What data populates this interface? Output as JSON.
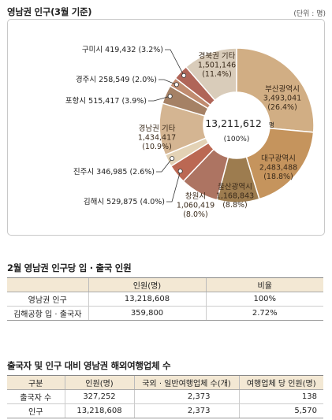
{
  "section1": {
    "title": "영남권 인구(3월 기준)",
    "unit": "(단위 : 명)"
  },
  "chart_data": {
    "type": "pie",
    "title": "영남권 인구(3월 기준)",
    "unit": "(단위 : 명)",
    "center_value": "13,211,612",
    "center_unit": "명",
    "center_pct": "(100%)",
    "slices": [
      {
        "name": "부산광역시",
        "value": 3493041,
        "value_label": "3,493,041",
        "pct": "(26.4%)",
        "color": "#d1ae84",
        "label_style": "inside"
      },
      {
        "name": "대구광역시",
        "value": 2483488,
        "value_label": "2,483,488",
        "pct": "(18.8%)",
        "color": "#c5945d",
        "label_style": "inside"
      },
      {
        "name": "울산광역시",
        "value": 1168843,
        "value_label": "1,168,843",
        "pct": "(8.8%)",
        "color": "#9d7c4f",
        "label_style": "inside"
      },
      {
        "name": "창원시",
        "value": 1060419,
        "value_label": "1,060,419",
        "pct": "(8.0%)",
        "color": "#ad7462",
        "label_style": "inside"
      },
      {
        "name": "김해시",
        "value": 529875,
        "value_label": "529,875",
        "pct": "(4.0%)",
        "color": "#bb6853",
        "label_style": "callout"
      },
      {
        "name": "진주시",
        "value": 346985,
        "value_label": "346,985",
        "pct": "(2.6%)",
        "color": "#e3d2b5",
        "label_style": "callout"
      },
      {
        "name": "경남권 기타",
        "value": 1434417,
        "value_label": "1,434,417",
        "pct": "(10.9%)",
        "color": "#d4b592",
        "label_style": "inside"
      },
      {
        "name": "포항시",
        "value": 515417,
        "value_label": "515,417",
        "pct": "(3.9%)",
        "color": "#a58165",
        "label_style": "callout"
      },
      {
        "name": "경주시",
        "value": 258549,
        "value_label": "258,549",
        "pct": "(2.0%)",
        "color": "#c08b6f",
        "label_style": "callout"
      },
      {
        "name": "구미시",
        "value": 419432,
        "value_label": "419,432",
        "pct": "(3.2%)",
        "color": "#b06558",
        "label_style": "callout"
      },
      {
        "name": "경북권 기타",
        "value": 1501146,
        "value_label": "1,501,146",
        "pct": "(11.4%)",
        "color": "#d9ccba",
        "label_style": "inside"
      }
    ]
  },
  "table1": {
    "title": "2월 영남권 인구당 입 · 출국 인원",
    "headers": [
      "",
      "인원(명)",
      "비율"
    ],
    "rows": [
      [
        "영남권 인구",
        "13,218,608",
        "100%"
      ],
      [
        "김해공항 입 · 출국자",
        "359,800",
        "2.72%"
      ]
    ]
  },
  "table2": {
    "title": "출국자 및 인구 대비 영남권 해외여행업체 수",
    "headers": [
      "구분",
      "인원(명)",
      "국외 · 일반여행업체 수(개)",
      "여행업체 당 인원(명)"
    ],
    "rows": [
      [
        "출국자 수",
        "327,252",
        "2,373",
        "138"
      ],
      [
        "인구",
        "13,218,608",
        "2,373",
        "5,570"
      ]
    ]
  }
}
